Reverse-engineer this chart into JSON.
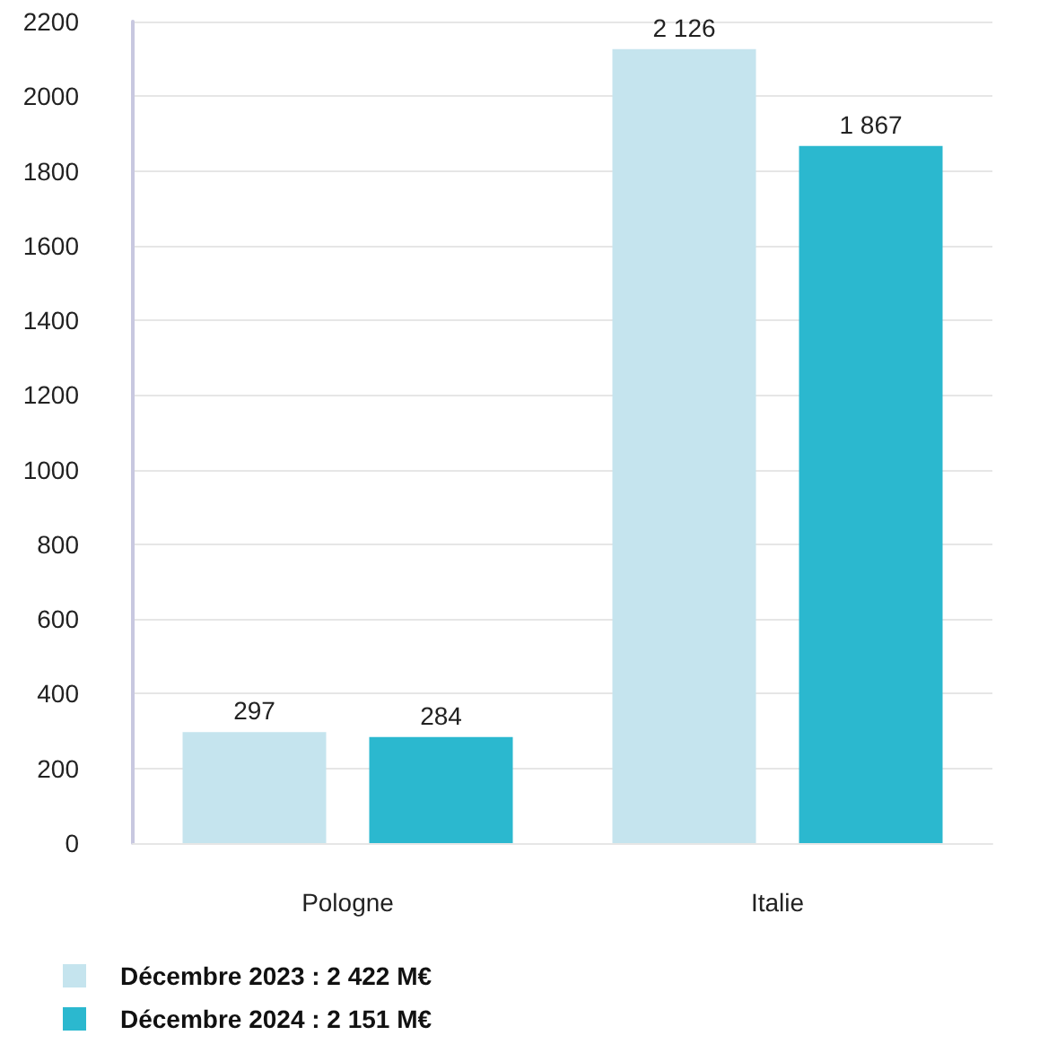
{
  "chart_data": {
    "type": "bar",
    "categories": [
      "Pologne",
      "Italie"
    ],
    "series": [
      {
        "name": "Décembre 2023 : 2 422 M€",
        "color": "#c5e4ee",
        "values": [
          297,
          2126
        ],
        "value_labels": [
          "297",
          "2 126"
        ]
      },
      {
        "name": "Décembre 2024 : 2 151 M€",
        "color": "#2bb8cf",
        "values": [
          284,
          1867
        ],
        "value_labels": [
          "284",
          "1 867"
        ]
      }
    ],
    "ylim": [
      0,
      2200
    ],
    "yticks": [
      0,
      200,
      400,
      600,
      800,
      1000,
      1200,
      1400,
      1600,
      1800,
      2000,
      2200
    ],
    "grid": "y",
    "legend": "bottom left"
  }
}
